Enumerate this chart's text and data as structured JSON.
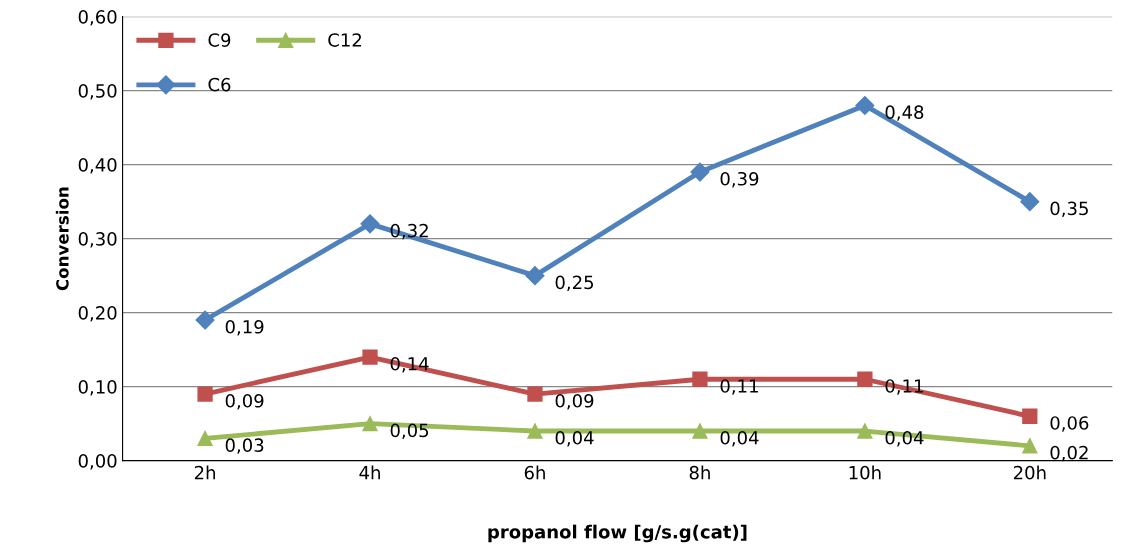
{
  "chart_data": {
    "type": "line",
    "xlabel": "propanol flow [g/s.g(cat)]",
    "ylabel": "Conversion",
    "categories": [
      "2h",
      "4h",
      "6h",
      "8h",
      "10h",
      "20h"
    ],
    "series": [
      {
        "name": "C9",
        "color": "#c0504d",
        "marker": "square",
        "values": [
          0.09,
          0.14,
          0.09,
          0.11,
          0.11,
          0.06
        ],
        "value_labels": [
          "0,09",
          "0,14",
          "0,09",
          "0,11",
          "0,11",
          "0,06"
        ]
      },
      {
        "name": "C6",
        "color": "#4f81bd",
        "marker": "diamond",
        "values": [
          0.19,
          0.32,
          0.25,
          0.39,
          0.48,
          0.35
        ],
        "value_labels": [
          "0,19",
          "0,32",
          "0,25",
          "0,39",
          "0,48",
          "0,35"
        ]
      },
      {
        "name": "C12",
        "color": "#9bbb59",
        "marker": "triangle",
        "values": [
          0.03,
          0.05,
          0.04,
          0.04,
          0.04,
          0.02
        ],
        "value_labels": [
          "0,03",
          "0,05",
          "0,04",
          "0,04",
          "0,04",
          "0,02"
        ]
      }
    ],
    "ylim": [
      0,
      0.6
    ],
    "yticks": [
      {
        "value": 0,
        "label": "0,00"
      },
      {
        "value": 0.1,
        "label": "0,10"
      },
      {
        "value": 0.2,
        "label": "0,20"
      },
      {
        "value": 0.3,
        "label": "0,30"
      },
      {
        "value": 0.4,
        "label": "0,40"
      },
      {
        "value": 0.5,
        "label": "0,50"
      },
      {
        "value": 0.6,
        "label": "0,60"
      }
    ],
    "grid": "y",
    "legend": "top left",
    "line_style": "solid"
  }
}
